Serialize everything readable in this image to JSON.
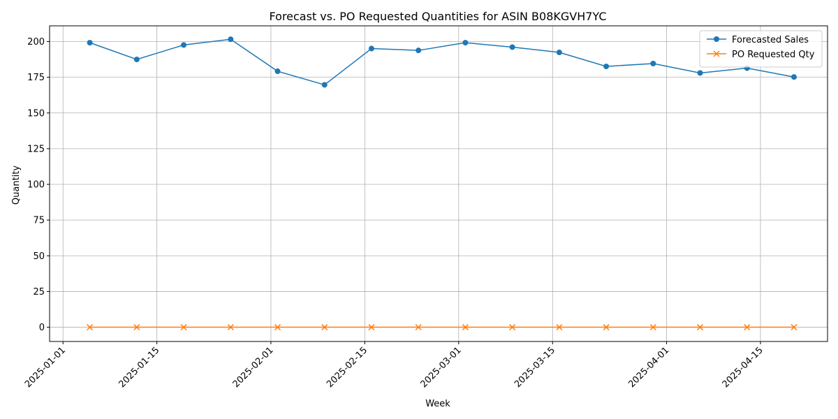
{
  "chart_data": {
    "type": "line",
    "title": "Forecast vs. PO Requested Quantities for ASIN B08KGVH7YC",
    "xlabel": "Week",
    "ylabel": "Quantity",
    "x": [
      "2025-01-05",
      "2025-01-12",
      "2025-01-19",
      "2025-01-26",
      "2025-02-02",
      "2025-02-09",
      "2025-02-16",
      "2025-02-23",
      "2025-03-02",
      "2025-03-09",
      "2025-03-16",
      "2025-03-23",
      "2025-03-30",
      "2025-04-06",
      "2025-04-13",
      "2025-04-20"
    ],
    "x_ticks": [
      "2025-01-01",
      "2025-01-15",
      "2025-02-01",
      "2025-02-15",
      "2025-03-01",
      "2025-03-15",
      "2025-04-01",
      "2025-04-15"
    ],
    "xlim": [
      "2024-12-30",
      "2025-04-25"
    ],
    "y_ticks": [
      0,
      25,
      50,
      75,
      100,
      125,
      150,
      175,
      200
    ],
    "ylim": [
      -10,
      211
    ],
    "grid": true,
    "legend_position": "top-right",
    "series": [
      {
        "name": "Forecasted Sales",
        "marker": "circle",
        "color": "#1f77b4",
        "values": [
          199.2,
          187.5,
          197.6,
          201.6,
          179.2,
          169.7,
          195.1,
          193.8,
          199.2,
          196.1,
          192.4,
          182.6,
          184.6,
          178.0,
          181.4,
          175.2
        ]
      },
      {
        "name": "PO Requested Qty",
        "marker": "x",
        "color": "#ff7f0e",
        "values": [
          0,
          0,
          0,
          0,
          0,
          0,
          0,
          0,
          0,
          0,
          0,
          0,
          0,
          0,
          0,
          0
        ]
      }
    ]
  }
}
